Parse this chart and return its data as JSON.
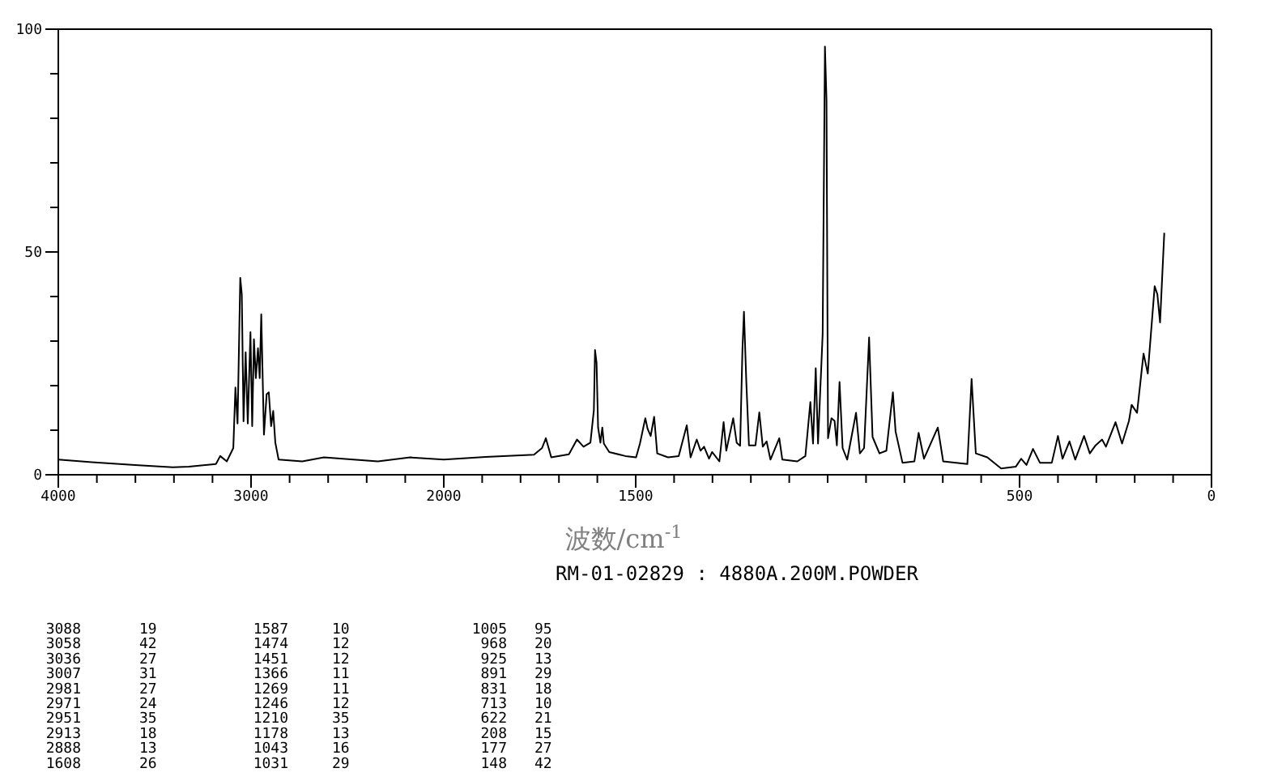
{
  "chart_data": [
    {
      "type": "line",
      "xlim": [
        4000,
        2000
      ],
      "ylim": [
        0,
        100
      ],
      "xticks": [
        4000,
        {
          "value": 3800,
          "label": null
        },
        {
          "value": 3600,
          "label": null
        },
        {
          "value": 3400,
          "label": null
        },
        {
          "value": 3200,
          "label": null
        },
        3000,
        {
          "value": 2800,
          "label": null
        },
        {
          "value": 2600,
          "label": null
        },
        {
          "value": 2400,
          "label": null
        },
        {
          "value": 2200,
          "label": null
        }
      ],
      "yticks": [
        0,
        {
          "value": 10,
          "label": null
        },
        {
          "value": 20,
          "label": null
        },
        {
          "value": 30,
          "label": null
        },
        {
          "value": 40,
          "label": null
        },
        50,
        {
          "value": 60,
          "label": null
        },
        {
          "value": 70,
          "label": null
        },
        {
          "value": 80,
          "label": null
        },
        {
          "value": 90,
          "label": null
        },
        100
      ],
      "marker": "none",
      "line_style": "solid",
      "series": [
        {
          "color": "#000000",
          "x": [
            4000,
            3826,
            3602,
            3406,
            3322,
            3182,
            3160,
            3126,
            3092,
            3081,
            3070,
            3056,
            3048,
            3039,
            3028,
            3017,
            3003,
            2994,
            2985,
            2975,
            2964,
            2955,
            2947,
            2933,
            2919,
            2908,
            2896,
            2885,
            2874,
            2857,
            2734,
            2622,
            2342,
            2174,
            2000
          ],
          "values": [
            3.4,
            2.8,
            2.2,
            1.7,
            1.8,
            2.4,
            4.2,
            3.0,
            6.0,
            19.6,
            11.5,
            44.2,
            40.5,
            12.0,
            27.5,
            11.5,
            32.0,
            10.9,
            30.4,
            21.7,
            28.4,
            21.7,
            36.0,
            9.0,
            18.1,
            18.5,
            10.9,
            14.3,
            7.2,
            3.4,
            3.0,
            3.9,
            3.0,
            3.9,
            3.4
          ]
        }
      ]
    },
    {
      "type": "line",
      "xlim": [
        2000,
        0
      ],
      "ylim": [
        0,
        100
      ],
      "tick_labels": "x",
      "xlabel": "波数/cm$^{-1}$",
      "annotations": [
        "RM-01-02829 : 4880A.200M.POWDER",
        "3088",
        "19",
        "3058",
        "42",
        "3036",
        "27",
        "3007",
        "31",
        "2981",
        "27",
        "2971",
        "24",
        "2951",
        "35",
        "2913",
        "18",
        "2888",
        "13",
        "1608",
        "26",
        "1587",
        "10",
        "1474",
        "12",
        "1451",
        "12",
        "1366",
        "11",
        "1269",
        "11",
        "1246",
        "12",
        "1210",
        "35",
        "1178",
        "13",
        "1043",
        "16",
        "1031",
        "29",
        "1005",
        "95",
        "968",
        "20",
        "925",
        "13",
        "891",
        "29",
        "831",
        "18",
        "713",
        "10",
        "622",
        "21",
        "208",
        "15",
        "177",
        "27",
        "148",
        "42"
      ],
      "xticks": [
        2000,
        {
          "value": 1900,
          "label": null
        },
        {
          "value": 1800,
          "label": null
        },
        {
          "value": 1700,
          "label": null
        },
        {
          "value": 1600,
          "label": null
        },
        1500,
        {
          "value": 1400,
          "label": null
        },
        {
          "value": 1300,
          "label": null
        },
        {
          "value": 1200,
          "label": null
        },
        {
          "value": 1100,
          "label": null
        },
        {
          "value": 1000,
          "label": null
        },
        {
          "value": 900,
          "label": null
        },
        {
          "value": 800,
          "label": null
        },
        {
          "value": 700,
          "label": null
        },
        {
          "value": 600,
          "label": null
        },
        500,
        {
          "value": 400,
          "label": null
        },
        {
          "value": 300,
          "label": null
        },
        {
          "value": 200,
          "label": null
        },
        {
          "value": 100,
          "label": null
        },
        0
      ],
      "marker": "none",
      "line_style": "solid",
      "series": [
        {
          "color": "#000000",
          "x": [
            2000,
            1891,
            1765,
            1744,
            1734,
            1720,
            1674,
            1653,
            1636,
            1618,
            1609,
            1606,
            1602,
            1598,
            1592,
            1587,
            1583,
            1569,
            1527,
            1499,
            1489,
            1475,
            1469,
            1461,
            1452,
            1444,
            1416,
            1388,
            1367,
            1357,
            1341,
            1331,
            1322,
            1309,
            1301,
            1282,
            1271,
            1264,
            1246,
            1237,
            1228,
            1222,
            1218,
            1212,
            1205,
            1188,
            1178,
            1169,
            1159,
            1149,
            1126,
            1118,
            1079,
            1058,
            1045,
            1038,
            1031,
            1025,
            1013,
            1007,
            1003,
            999,
            990,
            982,
            976,
            969,
            961,
            949,
            926,
            916,
            905,
            892,
            883,
            865,
            847,
            830,
            823,
            805,
            774,
            763,
            749,
            713,
            699,
            636,
            625,
            614,
            584,
            548,
            510,
            496,
            482,
            465,
            447,
            416,
            400,
            388,
            370,
            355,
            332,
            317,
            302,
            285,
            275,
            250,
            233,
            215,
            208,
            194,
            177,
            166,
            148,
            141,
            134,
            123
          ],
          "values": [
            3.4,
            4.0,
            4.5,
            6.0,
            8.2,
            3.9,
            4.6,
            7.9,
            6.3,
            7.2,
            14.5,
            28.0,
            25.1,
            10.6,
            7.2,
            10.6,
            7.0,
            5.1,
            4.2,
            3.9,
            7.0,
            12.7,
            10.3,
            8.7,
            13.0,
            4.8,
            3.9,
            4.2,
            11.1,
            3.9,
            7.9,
            5.4,
            6.3,
            3.6,
            5.1,
            3.0,
            11.8,
            5.4,
            12.7,
            7.2,
            6.5,
            28.0,
            36.6,
            21.1,
            6.6,
            6.6,
            14.0,
            6.3,
            7.5,
            3.4,
            8.2,
            3.4,
            3.0,
            4.2,
            16.3,
            7.0,
            23.9,
            7.0,
            31.6,
            96.1,
            84.2,
            8.2,
            12.7,
            12.1,
            6.6,
            20.8,
            6.0,
            3.4,
            13.9,
            4.8,
            6.0,
            30.8,
            8.5,
            4.8,
            5.4,
            18.5,
            9.7,
            2.7,
            3.0,
            9.4,
            3.6,
            10.6,
            3.0,
            2.4,
            21.5,
            4.8,
            3.9,
            1.4,
            1.8,
            3.6,
            2.2,
            5.8,
            2.7,
            2.7,
            8.7,
            3.6,
            7.5,
            3.4,
            8.7,
            4.8,
            6.6,
            7.9,
            6.3,
            11.8,
            7.0,
            12.1,
            15.7,
            13.9,
            27.2,
            22.7,
            42.3,
            40.5,
            34.2,
            54.3
          ]
        }
      ]
    }
  ]
}
